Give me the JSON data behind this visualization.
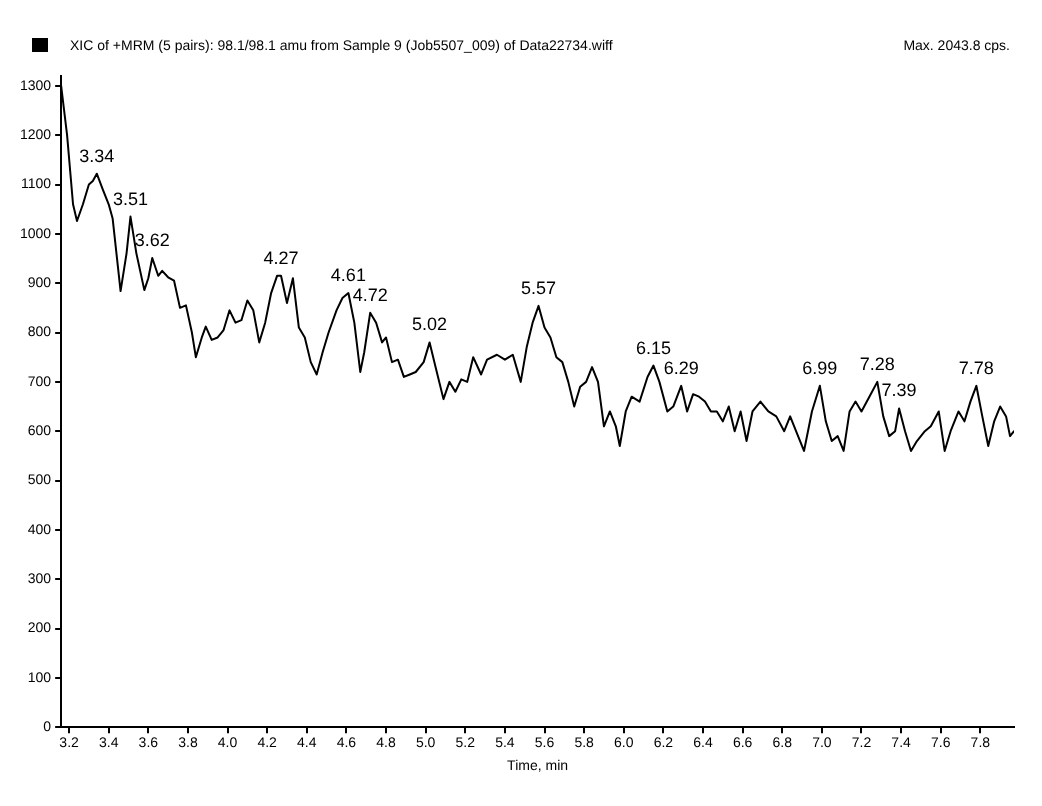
{
  "chart_data": {
    "type": "line",
    "title": "XIC of +MRM (5 pairs): 98.1/98.1 amu from Sample 9 (Job5507_009) of Data22734.wiff",
    "xlabel": "Time, min",
    "annotations": [
      "Max. 2043.8 cps.",
      {
        "text": "3.34",
        "x": 3.34,
        "y": 1122
      },
      {
        "text": "3.51",
        "x": 3.51,
        "y": 1035
      },
      {
        "text": "3.62",
        "x": 3.62,
        "y": 951
      },
      {
        "text": "4.27",
        "x": 4.27,
        "y": 915
      },
      {
        "text": "4.61",
        "x": 4.61,
        "y": 880
      },
      {
        "text": "4.72",
        "x": 4.72,
        "y": 840
      },
      {
        "text": "5.02",
        "x": 5.02,
        "y": 780
      },
      {
        "text": "5.57",
        "x": 5.57,
        "y": 854
      },
      {
        "text": "6.15",
        "x": 6.15,
        "y": 733
      },
      {
        "text": "6.29",
        "x": 6.29,
        "y": 692
      },
      {
        "text": "6.99",
        "x": 6.99,
        "y": 692
      },
      {
        "text": "7.28",
        "x": 7.28,
        "y": 700
      },
      {
        "text": "7.39",
        "x": 7.39,
        "y": 646
      },
      {
        "text": "7.78",
        "x": 7.78,
        "y": 692
      }
    ],
    "x": [
      3.16,
      3.19,
      3.22,
      3.24,
      3.27,
      3.3,
      3.32,
      3.34,
      3.37,
      3.4,
      3.42,
      3.46,
      3.49,
      3.51,
      3.54,
      3.58,
      3.6,
      3.62,
      3.65,
      3.67,
      3.7,
      3.73,
      3.76,
      3.79,
      3.82,
      3.84,
      3.87,
      3.89,
      3.92,
      3.95,
      3.98,
      4.01,
      4.04,
      4.07,
      4.1,
      4.13,
      4.16,
      4.19,
      4.22,
      4.25,
      4.27,
      4.3,
      4.33,
      4.36,
      4.39,
      4.42,
      4.45,
      4.48,
      4.51,
      4.55,
      4.58,
      4.61,
      4.64,
      4.67,
      4.69,
      4.72,
      4.75,
      4.78,
      4.8,
      4.83,
      4.86,
      4.89,
      4.92,
      4.95,
      4.99,
      5.02,
      5.05,
      5.09,
      5.12,
      5.15,
      5.18,
      5.21,
      5.24,
      5.28,
      5.31,
      5.36,
      5.4,
      5.44,
      5.48,
      5.51,
      5.54,
      5.57,
      5.6,
      5.63,
      5.66,
      5.69,
      5.72,
      5.75,
      5.78,
      5.81,
      5.84,
      5.87,
      5.9,
      5.93,
      5.96,
      5.98,
      6.01,
      6.04,
      6.08,
      6.12,
      6.15,
      6.18,
      6.22,
      6.25,
      6.29,
      6.32,
      6.35,
      6.38,
      6.41,
      6.44,
      6.47,
      6.5,
      6.53,
      6.56,
      6.59,
      6.62,
      6.65,
      6.69,
      6.73,
      6.77,
      6.81,
      6.84,
      6.88,
      6.91,
      6.95,
      6.99,
      7.02,
      7.05,
      7.08,
      7.11,
      7.14,
      7.17,
      7.2,
      7.24,
      7.28,
      7.31,
      7.34,
      7.37,
      7.39,
      7.42,
      7.45,
      7.48,
      7.52,
      7.55,
      7.59,
      7.62,
      7.65,
      7.69,
      7.72,
      7.75,
      7.78,
      7.81,
      7.84,
      7.87,
      7.9,
      7.93,
      7.95,
      7.97
    ],
    "series": [
      {
        "color": "#000000",
        "values": [
          1300,
          1200,
          1060,
          1026,
          1060,
          1100,
          1107,
          1122,
          1090,
          1060,
          1031,
          884,
          960,
          1035,
          960,
          886,
          910,
          951,
          915,
          925,
          912,
          905,
          850,
          855,
          800,
          750,
          790,
          812,
          785,
          790,
          805,
          845,
          820,
          825,
          865,
          845,
          780,
          820,
          880,
          915,
          915,
          860,
          910,
          810,
          790,
          740,
          715,
          760,
          800,
          845,
          870,
          880,
          820,
          720,
          760,
          840,
          820,
          780,
          790,
          740,
          745,
          710,
          715,
          720,
          740,
          780,
          730,
          665,
          700,
          680,
          705,
          700,
          750,
          715,
          745,
          755,
          745,
          755,
          700,
          770,
          820,
          854,
          810,
          790,
          750,
          740,
          700,
          650,
          690,
          700,
          730,
          700,
          610,
          640,
          610,
          570,
          640,
          670,
          660,
          710,
          733,
          700,
          640,
          650,
          692,
          640,
          675,
          670,
          660,
          640,
          640,
          620,
          650,
          600,
          640,
          580,
          640,
          660,
          640,
          630,
          600,
          630,
          590,
          560,
          640,
          692,
          620,
          580,
          590,
          560,
          640,
          660,
          640,
          670,
          700,
          630,
          590,
          600,
          646,
          600,
          560,
          580,
          600,
          610,
          640,
          560,
          600,
          640,
          620,
          660,
          692,
          630,
          570,
          620,
          650,
          630,
          590,
          600
        ]
      }
    ],
    "xlim": [
      3.16,
      7.97
    ],
    "xticks": [
      3.2,
      3.4,
      3.6,
      3.8,
      {
        "value": 4,
        "label": "4.0"
      },
      4.2,
      4.4,
      4.6,
      4.8,
      {
        "value": 5,
        "label": "5.0"
      },
      5.2,
      5.4,
      5.6,
      5.8,
      {
        "value": 6,
        "label": "6.0"
      },
      6.2,
      6.4,
      6.6,
      6.8,
      {
        "value": 7,
        "label": "7.0"
      },
      7.2,
      7.4,
      7.6,
      7.8
    ],
    "ylim": [
      0,
      1320
    ],
    "yticks": [
      0,
      100,
      200,
      300,
      400,
      500,
      600,
      700,
      800,
      900,
      1000,
      1100,
      1200,
      1300
    ],
    "grid": false,
    "legend": false,
    "marker": "none",
    "line_style": "solid"
  }
}
